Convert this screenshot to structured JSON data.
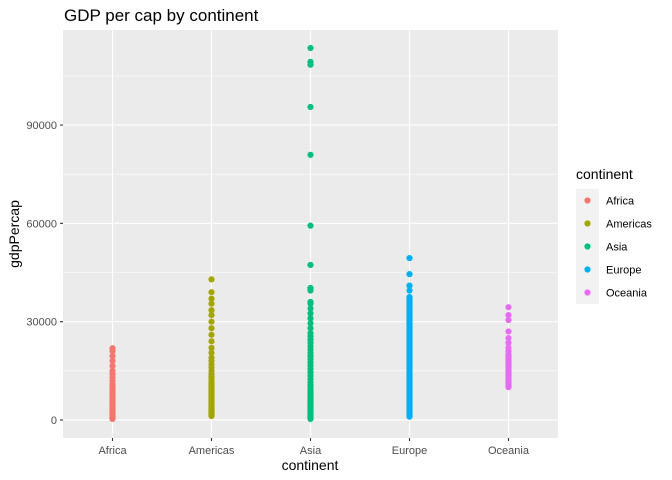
{
  "chart_data": {
    "type": "scatter",
    "title": "GDP per cap by continent",
    "xlabel": "continent",
    "ylabel": "gdpPercap",
    "categories": [
      "Africa",
      "Americas",
      "Asia",
      "Europe",
      "Oceania"
    ],
    "ylim": [
      -5500,
      119000
    ],
    "yticks": [
      0,
      30000,
      60000,
      90000
    ],
    "ytick_labels": [
      "0",
      "30000",
      "60000",
      "90000"
    ],
    "grid": true,
    "legend": {
      "title": "continent",
      "position": "right"
    },
    "series": [
      {
        "name": "Africa",
        "color": "#F8766D",
        "values": [
          300,
          500,
          700,
          900,
          1100,
          1300,
          1500,
          1700,
          2000,
          2300,
          2600,
          2900,
          3200,
          3500,
          3800,
          4200,
          4600,
          5000,
          5400,
          5800,
          6300,
          6800,
          7300,
          7800,
          8400,
          9000,
          9600,
          10300,
          11000,
          12000,
          13000,
          14000,
          15000,
          16500,
          18000,
          19500,
          21000,
          21900
        ]
      },
      {
        "name": "Americas",
        "color": "#A3A500",
        "values": [
          1200,
          1500,
          1800,
          2100,
          2400,
          2700,
          3000,
          3300,
          3600,
          4000,
          4400,
          4800,
          5200,
          5600,
          6000,
          6500,
          7000,
          7500,
          8000,
          8500,
          9000,
          9500,
          10000,
          10600,
          11200,
          11800,
          12500,
          13200,
          14000,
          15000,
          16000,
          17000,
          18000,
          19000,
          20500,
          22000,
          24000,
          26000,
          28000,
          30000,
          32000,
          33500,
          35500,
          37000,
          39000,
          42900
        ]
      },
      {
        "name": "Asia",
        "color": "#00BF7D",
        "values": [
          300,
          600,
          900,
          1200,
          1500,
          1800,
          2100,
          2500,
          2900,
          3300,
          3700,
          4200,
          4700,
          5200,
          5800,
          6400,
          7000,
          7700,
          8400,
          9100,
          9900,
          10700,
          11500,
          12500,
          13500,
          14500,
          15500,
          16500,
          17500,
          18500,
          19500,
          20500,
          21500,
          22500,
          23500,
          24500,
          25500,
          26500,
          28000,
          29500,
          31000,
          32500,
          34000,
          35500,
          36000,
          39500,
          40300,
          47300,
          59300,
          80900,
          95500,
          108400,
          109300,
          113500
        ]
      },
      {
        "name": "Europe",
        "color": "#00B0F6",
        "values": [
          1000,
          1500,
          2000,
          2500,
          3000,
          3500,
          4000,
          4500,
          5000,
          5500,
          6000,
          6500,
          7000,
          7500,
          8000,
          8500,
          9000,
          9500,
          10000,
          10500,
          11000,
          11500,
          12000,
          12500,
          13000,
          13500,
          14000,
          14500,
          15000,
          15500,
          16000,
          16500,
          17000,
          17500,
          18000,
          18500,
          19000,
          19500,
          20000,
          20500,
          21000,
          21500,
          22000,
          22500,
          23000,
          23500,
          24000,
          24500,
          25000,
          25500,
          26000,
          26500,
          27000,
          27500,
          28000,
          28500,
          29000,
          29500,
          30000,
          30500,
          31000,
          31500,
          32000,
          32500,
          33000,
          33500,
          34000,
          34500,
          35000,
          35500,
          36000,
          36500,
          37000,
          37500,
          39500,
          41000,
          44500,
          49400
        ]
      },
      {
        "name": "Oceania",
        "color": "#E76BF3",
        "values": [
          10000,
          10500,
          11000,
          11500,
          12000,
          12500,
          13000,
          13500,
          14000,
          14500,
          15000,
          15500,
          16000,
          16500,
          17000,
          17500,
          18000,
          18500,
          19000,
          19500,
          20000,
          21000,
          22000,
          23500,
          25000,
          27000,
          30500,
          32000,
          34400
        ]
      }
    ]
  }
}
